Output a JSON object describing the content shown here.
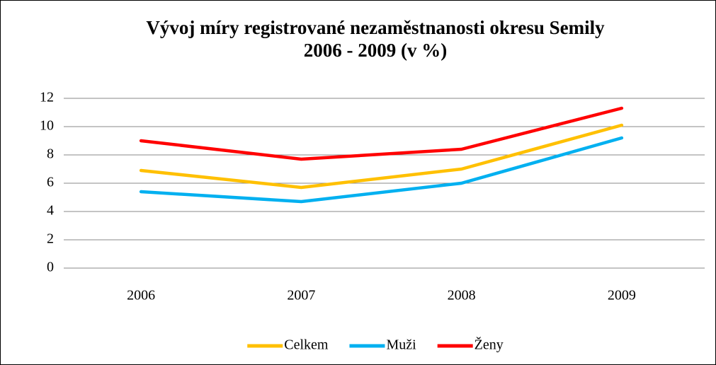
{
  "chart_data": {
    "type": "line",
    "title": "Vývoj míry registrované nezaměstnanosti okresu Semily",
    "subtitle": "2006 - 2009 (v %)",
    "categories": [
      "2006",
      "2007",
      "2008",
      "2009"
    ],
    "series": [
      {
        "name": "Celkem",
        "color": "#ffc000",
        "values": [
          6.9,
          5.7,
          7.0,
          10.1
        ]
      },
      {
        "name": "Muži",
        "color": "#00b0f0",
        "values": [
          5.4,
          4.7,
          6.0,
          9.2
        ]
      },
      {
        "name": "Ženy",
        "color": "#ff0000",
        "values": [
          9.0,
          7.7,
          8.4,
          11.3
        ]
      }
    ],
    "ylim": [
      0,
      12
    ],
    "yticks": [
      0,
      2,
      4,
      6,
      8,
      10,
      12
    ],
    "grid": true,
    "legend": "bottom"
  }
}
